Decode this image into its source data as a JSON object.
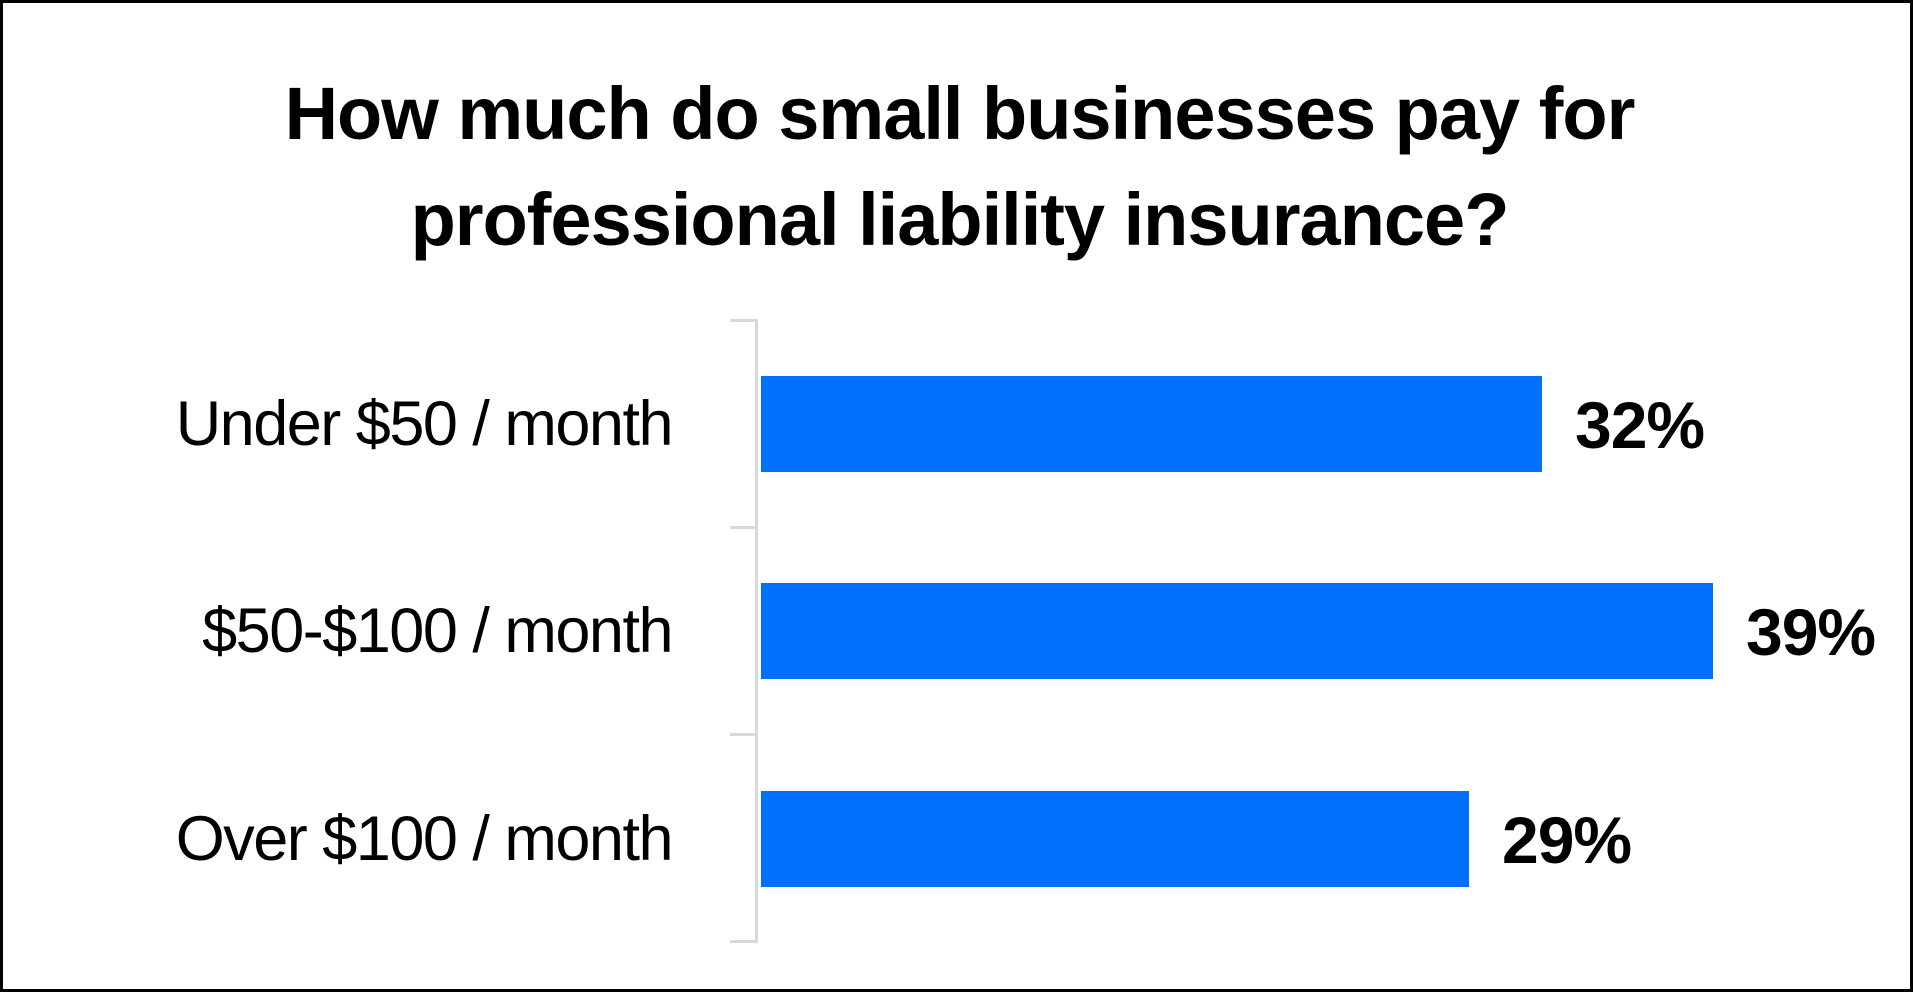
{
  "chart_data": {
    "type": "bar",
    "orientation": "horizontal",
    "title": "How much do small businesses pay for professional liability insurance?",
    "title_lines": [
      "How much do small businesses pay for",
      "professional liability insurance?"
    ],
    "categories": [
      "Under $50 / month",
      "$50-$100 / month",
      "Over $100 / month"
    ],
    "values": [
      32,
      39,
      29
    ],
    "value_labels": [
      "32%",
      "39%",
      "29%"
    ],
    "unit": "%",
    "xlabel": "",
    "ylabel": "",
    "xlim": [
      0,
      39
    ],
    "grid": false,
    "legend": null,
    "bar_color": "#0070FF",
    "axis_color": "#D9D9D9"
  }
}
